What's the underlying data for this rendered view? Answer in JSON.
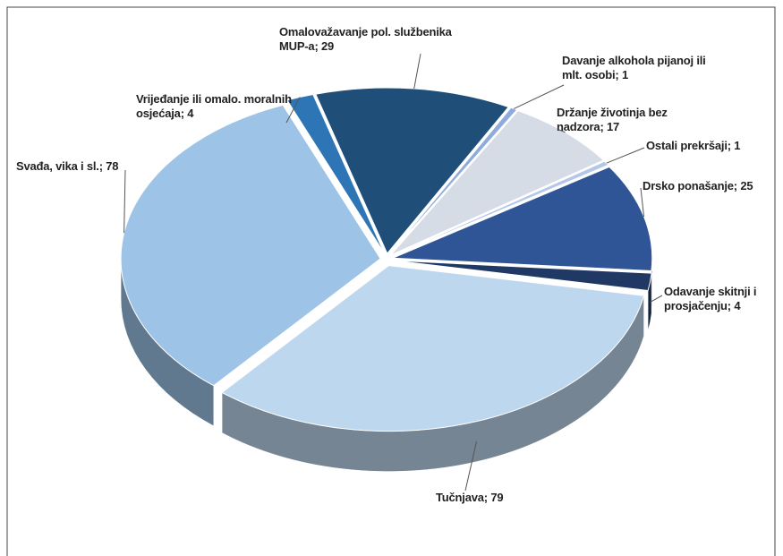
{
  "chart_data": {
    "type": "pie",
    "categories": [
      "Omalovažavanje pol. službenika MUP-a",
      "Davanje alkohola pijanoj ili mlt. osobi",
      "Držanje životinja bez nadzora",
      "Ostali prekršaji",
      "Drsko ponašanje",
      "Odavanje skitnji i prosjačenju",
      "Tučnjava",
      "Svađa, vika i sl.",
      "Vrijeđanje ili omalo. moralnih osjećaja"
    ],
    "values": [
      29,
      1,
      17,
      1,
      25,
      4,
      79,
      78,
      4
    ],
    "label_separator": "; ",
    "colors": [
      "#1f4e79",
      "#8faadc",
      "#d6dce5",
      "#b4c7e7",
      "#2f5597",
      "#1f3864",
      "#bdd7ee",
      "#9dc3e6",
      "#2e75b6"
    ]
  }
}
